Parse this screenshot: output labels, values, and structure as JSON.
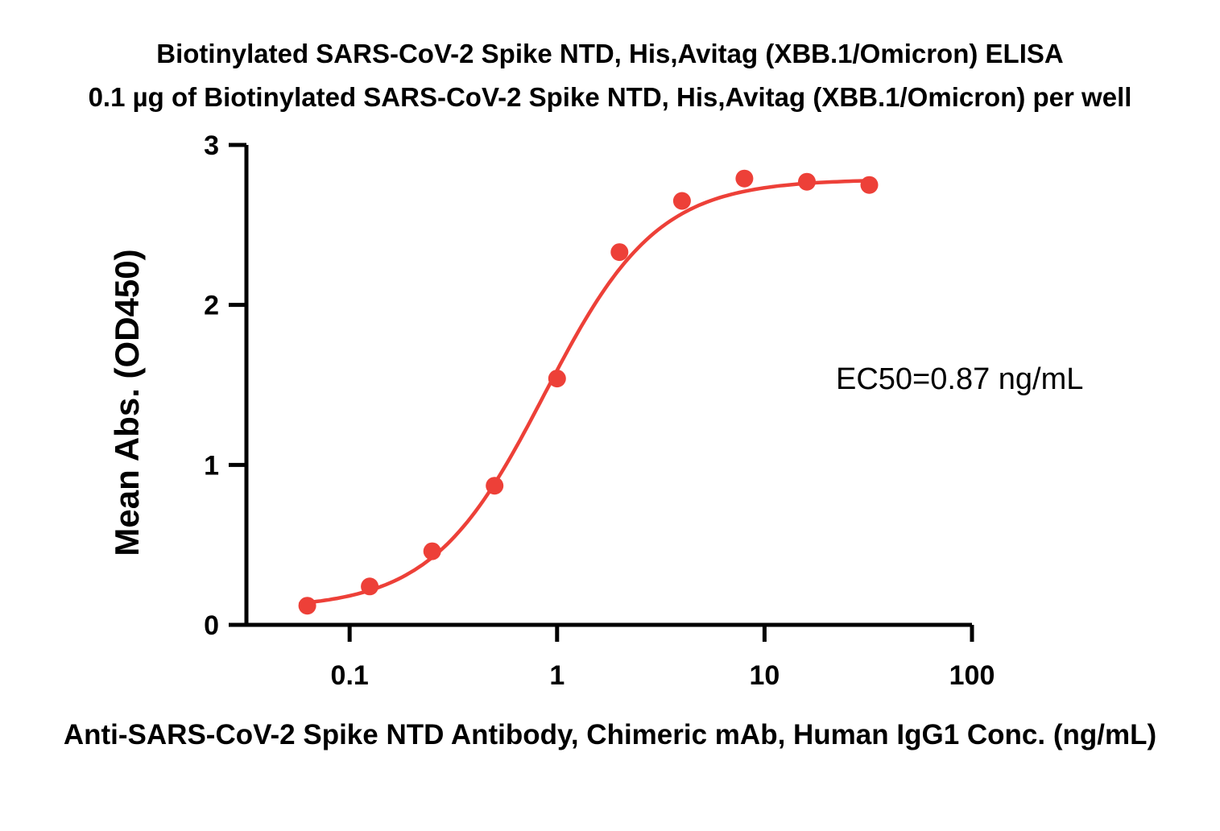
{
  "chart_data": {
    "type": "scatter",
    "title": "Biotinylated SARS-CoV-2 Spike NTD, His,Avitag (XBB.1/Omicron) ELISA",
    "subtitle": "0.1 µg of Biotinylated SARS-CoV-2 Spike NTD, His,Avitag (XBB.1/Omicron) per well",
    "xlabel": "Anti-SARS-CoV-2 Spike NTD Antibody, Chimeric mAb, Human IgG1 Conc. (ng/mL)",
    "ylabel": "Mean Abs. (OD450)",
    "x_scale": "log10",
    "grid": false,
    "legend_position": "none",
    "xlim": [
      0.0318,
      100
    ],
    "ylim": [
      0,
      3
    ],
    "x_ticks": [
      {
        "value": 0.1,
        "label": "0.1"
      },
      {
        "value": 1,
        "label": "1"
      },
      {
        "value": 10,
        "label": "10"
      },
      {
        "value": 100,
        "label": "100"
      }
    ],
    "y_ticks": [
      {
        "value": 0,
        "label": "0"
      },
      {
        "value": 1,
        "label": "1"
      },
      {
        "value": 2,
        "label": "2"
      },
      {
        "value": 3,
        "label": "3"
      }
    ],
    "series": [
      {
        "name": "Mean Abs. (OD450)",
        "marker": "circle",
        "color": "#ED4038",
        "x": [
          0.0625,
          0.125,
          0.25,
          0.5,
          1,
          2,
          4,
          8,
          16,
          32
        ],
        "y": [
          0.12,
          0.24,
          0.46,
          0.87,
          1.54,
          2.33,
          2.65,
          2.79,
          2.77,
          2.75
        ]
      }
    ],
    "fit_curve": {
      "model": "4PL",
      "bottom": 0.1,
      "top": 2.785,
      "ec50": 0.87,
      "hill": 1.6,
      "x_start": 0.058,
      "x_end": 32
    },
    "annotation": {
      "ec50_text": "EC50=0.87 ng/mL"
    },
    "colors": {
      "series": "#ED4038",
      "axis": "#000000",
      "text": "#000000",
      "background": "#FFFFFF"
    }
  }
}
